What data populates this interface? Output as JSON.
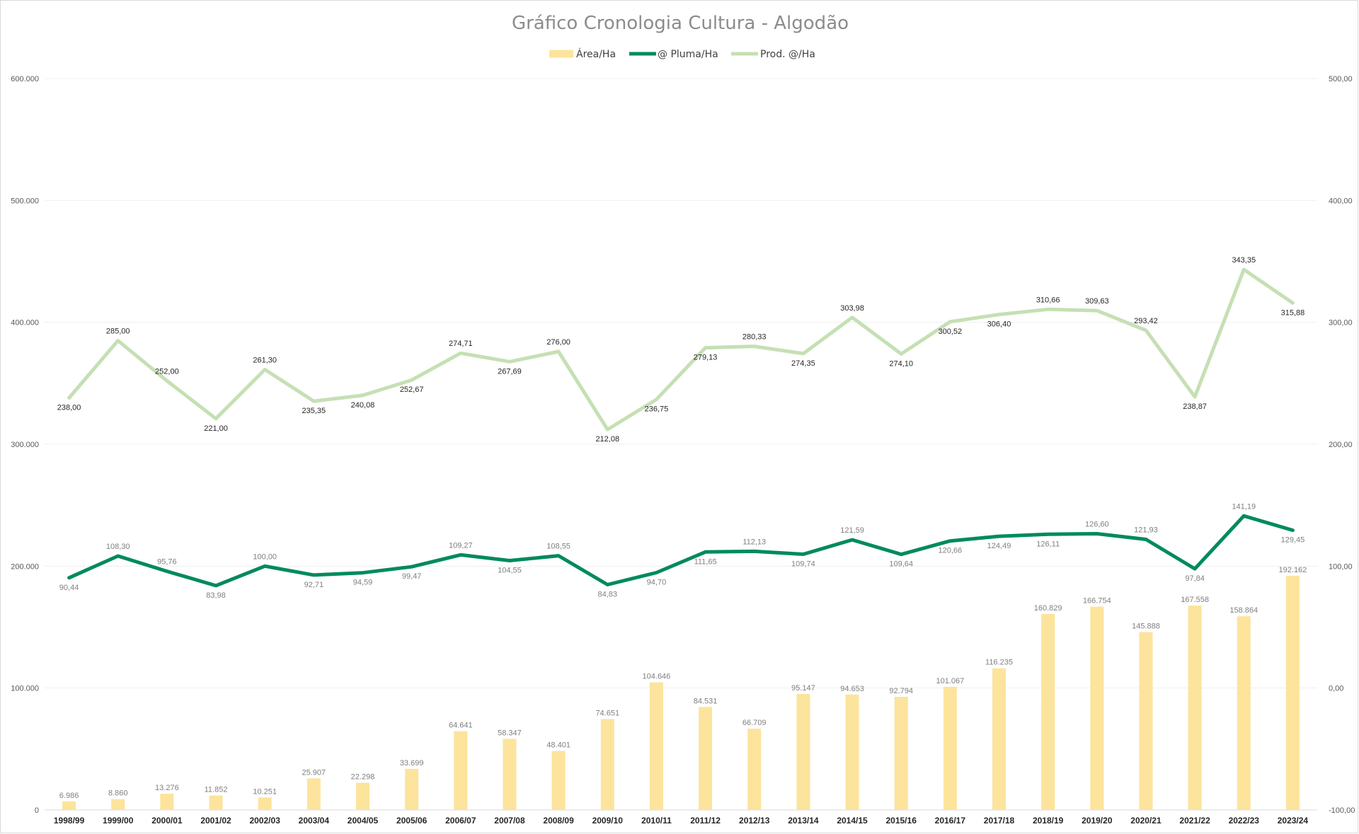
{
  "chart_data": {
    "type": "bar",
    "title": "Gráfico Cronologia Cultura - Algodão",
    "categories": [
      "1998/99",
      "1999/00",
      "2000/01",
      "2001/02",
      "2002/03",
      "2003/04",
      "2004/05",
      "2005/06",
      "2006/07",
      "2007/08",
      "2008/09",
      "2009/10",
      "2010/11",
      "2011/12",
      "2012/13",
      "2013/14",
      "2014/15",
      "2015/16",
      "2016/17",
      "2017/18",
      "2018/19",
      "2019/20",
      "2020/21",
      "2021/22",
      "2022/23",
      "2023/24"
    ],
    "y_left": {
      "min": 0,
      "max": 600000,
      "ticks": [
        "0",
        "100.000",
        "200.000",
        "300.000",
        "400.000",
        "500.000",
        "600.000"
      ]
    },
    "y_right": {
      "min": -100,
      "max": 500,
      "ticks": [
        "-100,00",
        "0,00",
        "100,00",
        "200,00",
        "300,00",
        "400,00",
        "500,00"
      ]
    },
    "grid": true,
    "legend_position": "top",
    "series": [
      {
        "name": "Área/Ha",
        "type": "bar",
        "axis": "left",
        "color": "#FCE49C",
        "values": [
          6986,
          8860,
          13276,
          11852,
          10251,
          25907,
          22298,
          33699,
          64641,
          58347,
          48401,
          74651,
          104646,
          84531,
          66709,
          95147,
          94653,
          92794,
          101067,
          116235,
          160829,
          166754,
          145888,
          167558,
          158864,
          192162
        ],
        "labels": [
          "6.986",
          "8.860",
          "13.276",
          "11.852",
          "10.251",
          "25.907",
          "22.298",
          "33.699",
          "64.641",
          "58.347",
          "48.401",
          "74.651",
          "104.646",
          "84.531",
          "66.709",
          "95.147",
          "94.653",
          "92.794",
          "101.067",
          "116.235",
          "160.829",
          "166.754",
          "145.888",
          "167.558",
          "158.864",
          "192.162"
        ]
      },
      {
        "name": "@ Pluma/Ha",
        "type": "line",
        "axis": "right",
        "color": "#008A5E",
        "values": [
          90.44,
          108.3,
          95.76,
          83.98,
          100.0,
          92.71,
          94.59,
          99.47,
          109.27,
          104.55,
          108.55,
          84.83,
          94.7,
          111.65,
          112.13,
          109.74,
          121.59,
          109.64,
          120.66,
          124.49,
          126.11,
          126.6,
          121.93,
          97.84,
          141.19,
          129.45
        ],
        "labels": [
          "90,44",
          "108,30",
          "95,76",
          "83,98",
          "100,00",
          "92,71",
          "94,59",
          "99,47",
          "109,27",
          "104,55",
          "108,55",
          "84,83",
          "94,70",
          "111,65",
          "112,13",
          "109,74",
          "121,59",
          "109,64",
          "120,66",
          "124,49",
          "126,11",
          "126,60",
          "121,93",
          "97,84",
          "141,19",
          "129,45"
        ]
      },
      {
        "name": "Prod. @/Ha",
        "type": "line",
        "axis": "right",
        "color": "#C5E0B4",
        "values": [
          238.0,
          285.0,
          252.0,
          221.0,
          261.3,
          235.35,
          240.08,
          252.67,
          274.71,
          267.69,
          276.0,
          212.08,
          236.75,
          279.13,
          280.33,
          274.35,
          303.98,
          274.1,
          300.52,
          306.4,
          310.66,
          309.63,
          293.42,
          238.87,
          343.35,
          315.88
        ],
        "labels": [
          "238,00",
          "285,00",
          "252,00",
          "221,00",
          "261,30",
          "235,35",
          "240,08",
          "252,67",
          "274,71",
          "267,69",
          "276,00",
          "212,08",
          "236,75",
          "279,13",
          "280,33",
          "274,35",
          "303,98",
          "274,10",
          "300,52",
          "306,40",
          "310,66",
          "309,63",
          "293,42",
          "238,87",
          "343,35",
          "315,88"
        ]
      }
    ]
  }
}
